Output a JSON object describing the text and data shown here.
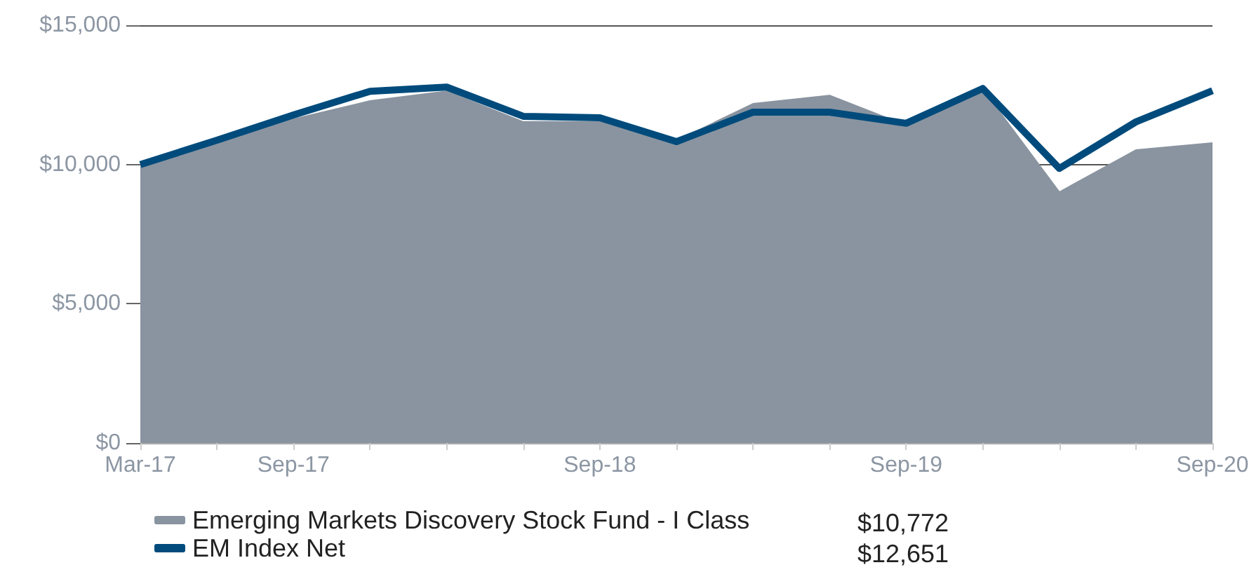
{
  "chart_data": {
    "type": "line",
    "categories": [
      "Mar-17",
      null,
      "Sep-17",
      null,
      null,
      null,
      "Sep-18",
      null,
      null,
      null,
      "Sep-19",
      null,
      null,
      null,
      "Sep-20"
    ],
    "series": [
      {
        "name": "Emerging Markets Discovery Stock Fund - I Class",
        "type": "area",
        "color": "#8a94a0",
        "values": [
          10000,
          10800,
          11630,
          12280,
          12630,
          11530,
          11530,
          10850,
          12180,
          12480,
          11400,
          12700,
          9010,
          10520,
          10770
        ]
      },
      {
        "name": "EM Index Net",
        "type": "line",
        "color": "#004b7c",
        "values": [
          10000,
          10870,
          11780,
          12630,
          12780,
          11730,
          11680,
          10820,
          11880,
          11880,
          11480,
          12730,
          9860,
          11530,
          12650
        ]
      }
    ],
    "ylim": [
      0,
      15000
    ],
    "yticks": [
      {
        "value": 0,
        "label": "$0"
      },
      {
        "value": 5000,
        "label": "$5,000"
      },
      {
        "value": 10000,
        "label": "$10,000"
      },
      {
        "value": 15000,
        "label": "$15,000"
      }
    ],
    "grid": "y",
    "legend": "bottom",
    "marker": "none",
    "annotations": [
      "$10,772",
      "$12,651"
    ]
  }
}
